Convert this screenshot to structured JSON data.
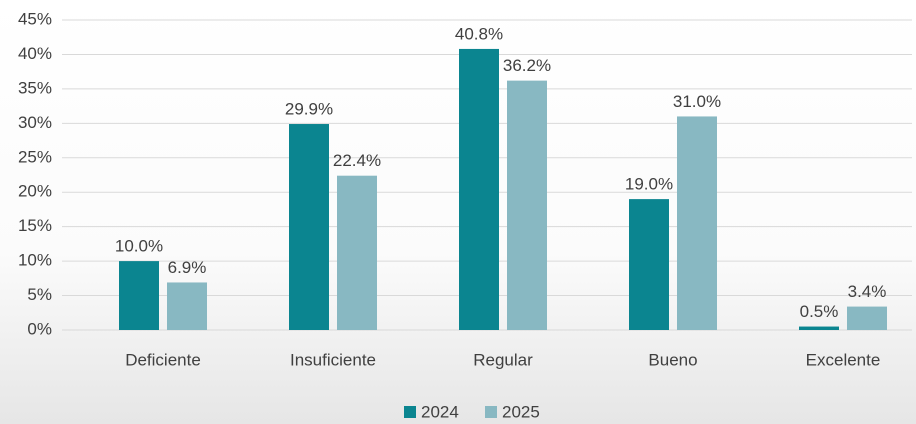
{
  "chart_data": {
    "type": "bar",
    "categories": [
      "Deficiente",
      "Insuficiente",
      "Regular",
      "Bueno",
      "Excelente"
    ],
    "series": [
      {
        "name": "2024",
        "color": "#0b8590",
        "values": [
          10.0,
          29.9,
          40.8,
          19.0,
          0.5
        ],
        "value_labels": [
          "10.0%",
          "29.9%",
          "40.8%",
          "19.0%",
          "0.5%"
        ]
      },
      {
        "name": "2025",
        "color": "#88b8c2",
        "values": [
          6.9,
          22.4,
          36.2,
          31.0,
          3.4
        ],
        "value_labels": [
          "6.9%",
          "22.4%",
          "36.2%",
          "31.0%",
          "3.4%"
        ]
      }
    ],
    "ylim": [
      0,
      45
    ],
    "yticks": [
      {
        "value": 0,
        "label": "0%"
      },
      {
        "value": 5,
        "label": "5%"
      },
      {
        "value": 10,
        "label": "10%"
      },
      {
        "value": 15,
        "label": "15%"
      },
      {
        "value": 20,
        "label": "20%"
      },
      {
        "value": 25,
        "label": "25%"
      },
      {
        "value": 30,
        "label": "30%"
      },
      {
        "value": 35,
        "label": "35%"
      },
      {
        "value": 40,
        "label": "40%"
      },
      {
        "value": 45,
        "label": "45%"
      }
    ],
    "grid": true,
    "legend": "bottom"
  }
}
